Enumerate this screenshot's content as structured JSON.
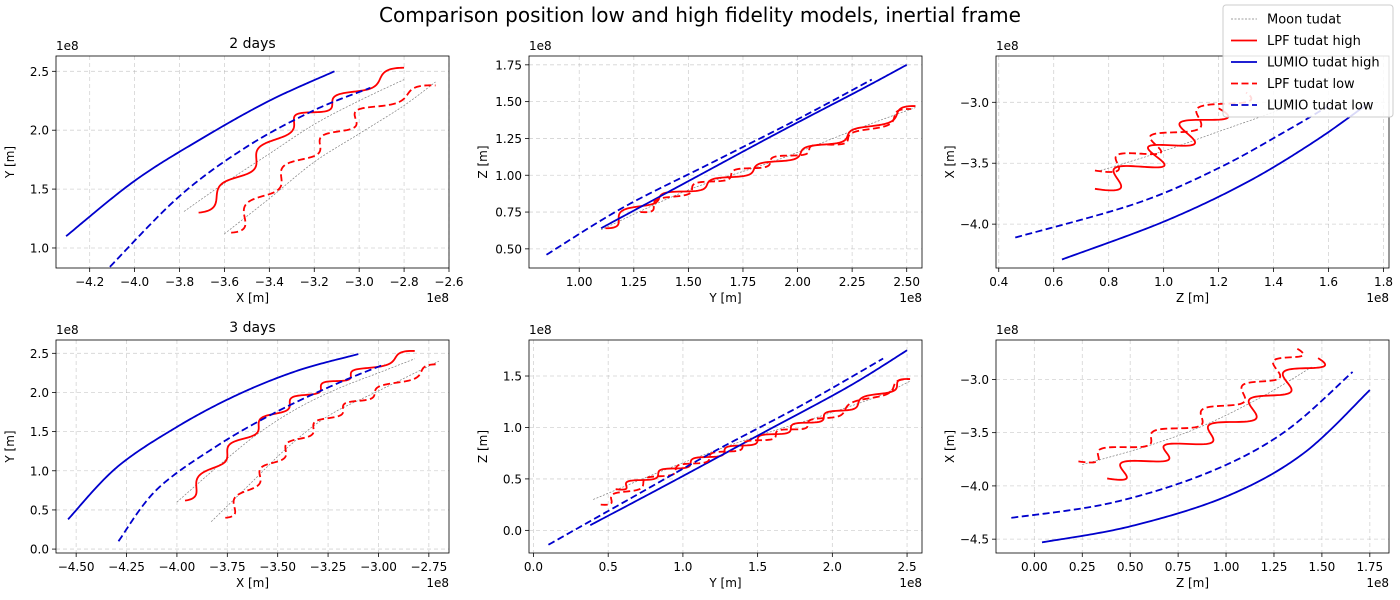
{
  "figure": {
    "title": "Comparison position low and high fidelity models, inertial frame"
  },
  "legend": {
    "placement": "top-right",
    "entries": [
      {
        "label": "Moon tudat",
        "color": "#808080",
        "style": "dotted",
        "width": 0.7
      },
      {
        "label": "LPF tudat high",
        "color": "#ff0000",
        "style": "solid",
        "width": 1.8
      },
      {
        "label": "LUMIO tudat high",
        "color": "#0000cc",
        "style": "solid",
        "width": 1.8
      },
      {
        "label": "LPF tudat low",
        "color": "#ff0000",
        "style": "dashed",
        "width": 1.8
      },
      {
        "label": "LUMIO tudat low",
        "color": "#0000cc",
        "style": "dashed",
        "width": 1.8
      }
    ]
  },
  "chart_data": [
    {
      "type": "line",
      "title": "2 days",
      "xlabel": "X [m]",
      "ylabel": "Y [m]",
      "x_offset": "1e8",
      "y_offset": "1e8",
      "grid": true,
      "xlim": [
        -4.35,
        -2.6
      ],
      "ylim": [
        0.83,
        2.63
      ],
      "xticks": [
        -4.2,
        -4.0,
        -3.8,
        -3.6,
        -3.4,
        -3.2,
        -3.0,
        -2.8,
        -2.6
      ],
      "yticks": [
        1.0,
        1.5,
        2.0,
        2.5
      ],
      "xticklabels": [
        "−4.2",
        "−4.0",
        "−3.8",
        "−3.6",
        "−3.4",
        "−3.2",
        "−3.0",
        "−2.8",
        "−2.6"
      ],
      "yticklabels": [
        "1.0",
        "1.5",
        "2.0",
        "2.5"
      ],
      "series": [
        {
          "name": "Moon tudat",
          "kind": "moon",
          "x": [
            -3.78,
            -3.6,
            -3.4,
            -3.2,
            -3.0,
            -2.8
          ],
          "y": [
            1.31,
            1.55,
            1.8,
            2.05,
            2.25,
            2.43
          ]
        },
        {
          "name": "Moon tudat",
          "kind": "moon",
          "x": [
            -3.6,
            -3.4,
            -3.2,
            -3.0,
            -2.8,
            -2.66
          ],
          "y": [
            1.12,
            1.42,
            1.73,
            1.97,
            2.21,
            2.41
          ]
        },
        {
          "name": "LPF tudat high",
          "kind": "lpf_high",
          "x": [
            -3.715,
            -3.57,
            -3.43,
            -3.29,
            -3.15,
            -2.99,
            -2.8
          ],
          "y": [
            1.3,
            1.55,
            1.81,
            2.07,
            2.2,
            2.36,
            2.53
          ],
          "amp": 0.05,
          "periods": 5
        },
        {
          "name": "LUMIO tudat high",
          "kind": "lumio_high",
          "x": [
            -4.305,
            -4.0,
            -3.7,
            -3.4,
            -3.11
          ],
          "y": [
            1.1,
            1.57,
            1.93,
            2.25,
            2.5
          ]
        },
        {
          "name": "LPF tudat low",
          "kind": "lpf_low",
          "x": [
            -3.57,
            -3.43,
            -3.26,
            -3.09,
            -2.93,
            -2.66
          ],
          "y": [
            1.13,
            1.44,
            1.75,
            1.99,
            2.2,
            2.38
          ],
          "amp": 0.055,
          "periods": 5
        },
        {
          "name": "LUMIO tudat low",
          "kind": "lumio_low",
          "x": [
            -4.11,
            -3.8,
            -3.5,
            -3.2,
            -2.95
          ],
          "y": [
            0.84,
            1.44,
            1.86,
            2.17,
            2.36
          ]
        }
      ]
    },
    {
      "type": "line",
      "title": "",
      "xlabel": "Y [m]",
      "ylabel": "Z [m]",
      "x_offset": "1e8",
      "y_offset": "1e8",
      "grid": true,
      "xlim": [
        0.77,
        2.57
      ],
      "ylim": [
        0.37,
        1.81
      ],
      "xticks": [
        1.0,
        1.25,
        1.5,
        1.75,
        2.0,
        2.25,
        2.5
      ],
      "yticks": [
        0.5,
        0.75,
        1.0,
        1.25,
        1.5,
        1.75
      ],
      "xticklabels": [
        "1.00",
        "1.25",
        "1.50",
        "1.75",
        "2.00",
        "2.25",
        "2.50"
      ],
      "yticklabels": [
        "0.50",
        "0.75",
        "1.00",
        "1.25",
        "1.50",
        "1.75"
      ],
      "series": [
        {
          "name": "Moon tudat",
          "kind": "moon",
          "x": [
            1.1,
            1.5,
            1.9,
            2.3,
            2.54
          ],
          "y": [
            0.63,
            0.9,
            1.1,
            1.33,
            1.46
          ]
        },
        {
          "name": "LPF tudat high",
          "kind": "lpf_high",
          "x": [
            1.12,
            1.3,
            1.55,
            1.8,
            2.05,
            2.3,
            2.54
          ],
          "y": [
            0.64,
            0.81,
            0.92,
            1.04,
            1.17,
            1.31,
            1.47
          ],
          "amp": 0.035,
          "periods": 7
        },
        {
          "name": "LUMIO tudat high",
          "kind": "lumio_high",
          "x": [
            1.1,
            1.5,
            1.9,
            2.3,
            2.5
          ],
          "y": [
            0.64,
            0.96,
            1.28,
            1.59,
            1.75
          ]
        },
        {
          "name": "LPF tudat low",
          "kind": "lpf_low",
          "x": [
            1.28,
            1.5,
            1.75,
            2.0,
            2.25,
            2.52
          ],
          "y": [
            0.75,
            0.9,
            1.03,
            1.15,
            1.26,
            1.45
          ],
          "amp": 0.035,
          "periods": 7
        },
        {
          "name": "LUMIO tudat low",
          "kind": "lumio_low",
          "x": [
            0.85,
            1.2,
            1.6,
            2.0,
            2.34
          ],
          "y": [
            0.46,
            0.78,
            1.08,
            1.38,
            1.65
          ]
        }
      ]
    },
    {
      "type": "line",
      "title": "",
      "xlabel": "Z [m]",
      "ylabel": "X [m]",
      "x_offset": "1e8",
      "y_offset": "1e8",
      "grid": true,
      "xlim": [
        0.39,
        1.82
      ],
      "ylim": [
        -4.36,
        -2.62
      ],
      "xticks": [
        0.4,
        0.6,
        0.8,
        1.0,
        1.2,
        1.4,
        1.6,
        1.8
      ],
      "yticks": [
        -4.0,
        -3.5,
        -3.0
      ],
      "xticklabels": [
        "0.4",
        "0.6",
        "0.8",
        "1.0",
        "1.2",
        "1.4",
        "1.6",
        "1.8"
      ],
      "yticklabels": [
        "−4.0",
        "−3.5",
        "−3.0"
      ],
      "series": [
        {
          "name": "Moon tudat",
          "kind": "moon",
          "x": [
            0.77,
            1.0,
            1.2,
            1.4,
            1.5
          ],
          "y": [
            -3.56,
            -3.4,
            -3.24,
            -3.08,
            -2.98
          ]
        },
        {
          "name": "LPF tudat high",
          "kind": "lpf_high",
          "x": [
            0.75,
            0.9,
            1.0,
            1.1,
            1.2
          ],
          "y": [
            -3.71,
            -3.55,
            -3.4,
            -3.23,
            -3.05
          ],
          "amp": 0.11,
          "periods": 3.5
        },
        {
          "name": "LUMIO tudat high",
          "kind": "lumio_high",
          "x": [
            0.63,
            1.0,
            1.3,
            1.55,
            1.75
          ],
          "y": [
            -4.29,
            -3.98,
            -3.66,
            -3.32,
            -3.0
          ]
        },
        {
          "name": "LPF tudat low",
          "kind": "lpf_low",
          "x": [
            0.75,
            0.9,
            1.0,
            1.15,
            1.3
          ],
          "y": [
            -3.56,
            -3.44,
            -3.3,
            -3.1,
            -2.92
          ],
          "amp": 0.09,
          "periods": 3.5
        },
        {
          "name": "LUMIO tudat low",
          "kind": "lumio_low",
          "x": [
            0.46,
            0.9,
            1.2,
            1.45,
            1.6
          ],
          "y": [
            -4.11,
            -3.83,
            -3.54,
            -3.23,
            -3.03
          ]
        }
      ]
    },
    {
      "type": "line",
      "title": "3 days",
      "xlabel": "X [m]",
      "ylabel": "Y [m]",
      "x_offset": "1e8",
      "y_offset": "1e8",
      "grid": true,
      "xlim": [
        -4.6,
        -2.65
      ],
      "ylim": [
        -0.05,
        2.67
      ],
      "xticks": [
        -4.5,
        -4.25,
        -4.0,
        -3.75,
        -3.5,
        -3.25,
        -3.0,
        -2.75
      ],
      "yticks": [
        0.0,
        0.5,
        1.0,
        1.5,
        2.0,
        2.5
      ],
      "xticklabels": [
        "−4.50",
        "−4.25",
        "−4.00",
        "−3.75",
        "−3.50",
        "−3.25",
        "−3.00",
        "−2.75"
      ],
      "yticklabels": [
        "0.0",
        "0.5",
        "1.0",
        "1.5",
        "2.0",
        "2.5"
      ],
      "series": [
        {
          "name": "Moon tudat",
          "kind": "moon",
          "x": [
            -4.0,
            -3.8,
            -3.6,
            -3.4,
            -3.2,
            -3.0,
            -2.82
          ],
          "y": [
            0.6,
            1.05,
            1.47,
            1.8,
            2.05,
            2.25,
            2.43
          ]
        },
        {
          "name": "Moon tudat",
          "kind": "moon",
          "x": [
            -3.83,
            -3.65,
            -3.45,
            -3.25,
            -3.0,
            -2.7
          ],
          "y": [
            0.35,
            0.8,
            1.3,
            1.7,
            2.02,
            2.4
          ]
        },
        {
          "name": "LPF tudat high",
          "kind": "lpf_high",
          "x": [
            -3.96,
            -3.8,
            -3.62,
            -3.44,
            -3.26,
            -3.08,
            -2.82
          ],
          "y": [
            0.62,
            1.1,
            1.52,
            1.86,
            2.09,
            2.28,
            2.53
          ],
          "amp": 0.06,
          "periods": 7
        },
        {
          "name": "LUMIO tudat high",
          "kind": "lumio_high",
          "x": [
            -4.54,
            -4.3,
            -4.0,
            -3.7,
            -3.4,
            -3.1
          ],
          "y": [
            0.38,
            1.04,
            1.56,
            1.97,
            2.28,
            2.49
          ]
        },
        {
          "name": "LPF tudat low",
          "kind": "lpf_low",
          "x": [
            -3.76,
            -3.6,
            -3.42,
            -3.22,
            -3.0,
            -2.7
          ],
          "y": [
            0.4,
            0.9,
            1.35,
            1.72,
            2.02,
            2.36
          ],
          "amp": 0.06,
          "periods": 7
        },
        {
          "name": "LUMIO tudat low",
          "kind": "lumio_low",
          "x": [
            -4.29,
            -4.1,
            -3.8,
            -3.5,
            -3.2,
            -2.97
          ],
          "y": [
            0.1,
            0.76,
            1.32,
            1.76,
            2.12,
            2.36
          ]
        }
      ]
    },
    {
      "type": "line",
      "title": "",
      "xlabel": "Y [m]",
      "ylabel": "Z [m]",
      "x_offset": "1e8",
      "y_offset": "1e8",
      "grid": true,
      "xlim": [
        -0.03,
        2.6
      ],
      "ylim": [
        -0.22,
        1.85
      ],
      "xticks": [
        0.0,
        0.5,
        1.0,
        1.5,
        2.0,
        2.5
      ],
      "yticks": [
        0.0,
        0.5,
        1.0,
        1.5
      ],
      "xticklabels": [
        "0.0",
        "0.5",
        "1.0",
        "1.5",
        "2.0",
        "2.5"
      ],
      "yticklabels": [
        "0.0",
        "0.5",
        "1.0",
        "1.5"
      ],
      "series": [
        {
          "name": "Moon tudat",
          "kind": "moon",
          "x": [
            0.4,
            0.9,
            1.4,
            1.9,
            2.3,
            2.52
          ],
          "y": [
            0.3,
            0.6,
            0.87,
            1.1,
            1.3,
            1.45
          ]
        },
        {
          "name": "LPF tudat high",
          "kind": "lpf_high",
          "x": [
            0.55,
            0.9,
            1.3,
            1.7,
            2.1,
            2.52
          ],
          "y": [
            0.4,
            0.58,
            0.78,
            0.98,
            1.19,
            1.47
          ],
          "amp": 0.045,
          "periods": 9
        },
        {
          "name": "LUMIO tudat high",
          "kind": "lumio_high",
          "x": [
            0.38,
            0.9,
            1.5,
            2.1,
            2.5
          ],
          "y": [
            0.05,
            0.45,
            0.92,
            1.39,
            1.75
          ]
        },
        {
          "name": "LPF tudat low",
          "kind": "lpf_low",
          "x": [
            0.45,
            0.8,
            1.2,
            1.6,
            2.0,
            2.52
          ],
          "y": [
            0.25,
            0.5,
            0.72,
            0.92,
            1.12,
            1.47
          ],
          "amp": 0.045,
          "periods": 9
        },
        {
          "name": "LUMIO tudat low",
          "kind": "lumio_low",
          "x": [
            0.1,
            0.6,
            1.2,
            1.8,
            2.34
          ],
          "y": [
            -0.14,
            0.27,
            0.76,
            1.22,
            1.67
          ]
        }
      ]
    },
    {
      "type": "line",
      "title": "",
      "xlabel": "Z [m]",
      "ylabel": "X [m]",
      "x_offset": "1e8",
      "y_offset": "1e8",
      "grid": true,
      "xlim": [
        -0.2,
        1.85
      ],
      "ylim": [
        -4.63,
        -2.63
      ],
      "xticks": [
        0.0,
        0.25,
        0.5,
        0.75,
        1.0,
        1.25,
        1.5,
        1.75
      ],
      "yticks": [
        -4.5,
        -4.0,
        -3.5,
        -3.0
      ],
      "xticklabels": [
        "0.00",
        "0.25",
        "0.50",
        "0.75",
        "1.00",
        "1.25",
        "1.50",
        "1.75"
      ],
      "yticklabels": [
        "−4.5",
        "−4.0",
        "−3.5",
        "−3.0"
      ],
      "series": [
        {
          "name": "Moon tudat",
          "kind": "moon",
          "x": [
            0.25,
            0.6,
            0.9,
            1.2,
            1.45
          ],
          "y": [
            -3.8,
            -3.62,
            -3.42,
            -3.15,
            -2.88
          ]
        },
        {
          "name": "LPF tudat high",
          "kind": "lpf_high",
          "x": [
            0.38,
            0.6,
            0.85,
            1.1,
            1.3,
            1.48
          ],
          "y": [
            -3.93,
            -3.75,
            -3.57,
            -3.33,
            -3.05,
            -2.8
          ],
          "amp": 0.1,
          "periods": 5.5
        },
        {
          "name": "LUMIO tudat high",
          "kind": "lumio_high",
          "x": [
            0.04,
            0.5,
            1.0,
            1.4,
            1.75
          ],
          "y": [
            -4.53,
            -4.38,
            -4.1,
            -3.7,
            -3.1
          ]
        },
        {
          "name": "LPF tudat low",
          "kind": "lpf_low",
          "x": [
            0.23,
            0.5,
            0.8,
            1.05,
            1.25,
            1.37
          ],
          "y": [
            -3.77,
            -3.62,
            -3.42,
            -3.18,
            -2.93,
            -2.71
          ],
          "amp": 0.08,
          "periods": 5.5
        },
        {
          "name": "LUMIO tudat low",
          "kind": "lumio_low",
          "x": [
            -0.12,
            0.4,
            0.9,
            1.3,
            1.66
          ],
          "y": [
            -4.3,
            -4.16,
            -3.88,
            -3.5,
            -2.93
          ]
        }
      ]
    }
  ]
}
